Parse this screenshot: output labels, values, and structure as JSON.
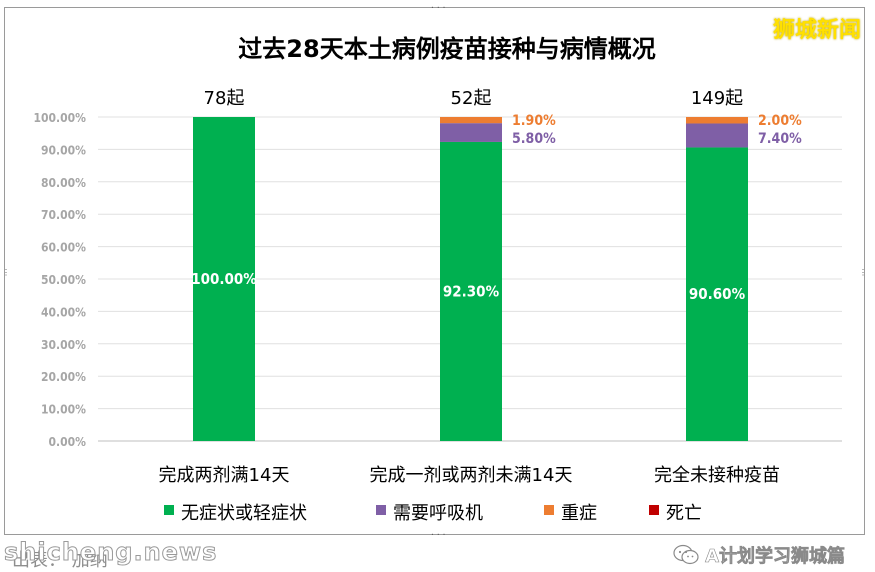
{
  "watermark": "狮城新闻",
  "footer": {
    "site": "shicheng.news",
    "source": "出表：  加纳   ",
    "wechat": "A计划学习狮城篇"
  },
  "colors": {
    "mild": "#00b050",
    "icu_oxygen": "#7f5fa6",
    "severe": "#ed7d31",
    "death": "#c00000",
    "axis_text": "#a6a6a6",
    "grid": "#e0e0e0"
  },
  "chart_data": {
    "type": "bar",
    "stacked": true,
    "title": "过去28天本土病例疫苗接种与病情概况",
    "categories": [
      "完成两剂满14天",
      "完成一剂或两剂未满14天",
      "完全未接种疫苗"
    ],
    "totals": [
      "78起",
      "52起",
      "149起"
    ],
    "y_ticks": [
      "0.00%",
      "10.00%",
      "20.00%",
      "30.00%",
      "40.00%",
      "50.00%",
      "60.00%",
      "70.00%",
      "80.00%",
      "90.00%",
      "100.00%"
    ],
    "ylim": [
      0,
      100
    ],
    "grid": true,
    "legend_position": "bottom",
    "series": [
      {
        "name": "无症状或轻症状",
        "color": "#00b050",
        "values": [
          100.0,
          92.3,
          90.6
        ],
        "labels": [
          "100.00%",
          "92.30%",
          "90.60%"
        ]
      },
      {
        "name": "需要呼吸机",
        "color": "#7f5fa6",
        "values": [
          0,
          5.8,
          7.4
        ],
        "labels": [
          "",
          "5.80%",
          "7.40%"
        ]
      },
      {
        "name": "重症",
        "color": "#ed7d31",
        "values": [
          0,
          1.9,
          2.0
        ],
        "labels": [
          "",
          "1.90%",
          "2.00%"
        ]
      },
      {
        "name": "死亡",
        "color": "#c00000",
        "values": [
          0,
          0,
          0
        ],
        "labels": [
          "",
          "",
          ""
        ]
      }
    ]
  }
}
